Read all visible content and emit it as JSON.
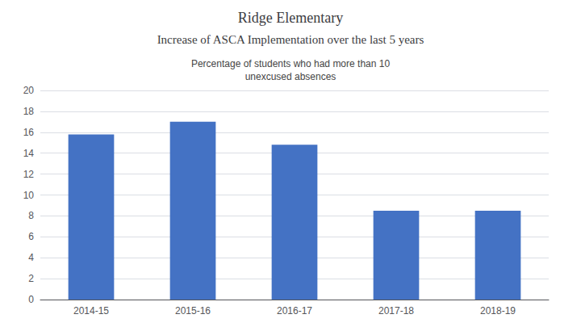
{
  "chart_data": {
    "type": "bar",
    "title": "Ridge Elementary",
    "subtitle": "Increase of ASCA Implementation over the last 5 years",
    "chart_title": "Percentage of students who had more than 10\nunexcused absences",
    "categories": [
      "2014-15",
      "2015-16",
      "2016-17",
      "2017-18",
      "2018-19"
    ],
    "values": [
      15.8,
      17.0,
      14.8,
      8.5,
      8.5
    ],
    "color": "#4472C4",
    "ylim": [
      0,
      20
    ],
    "yticks": [
      0,
      2,
      4,
      6,
      8,
      10,
      12,
      14,
      16,
      18,
      20
    ],
    "grid": true
  }
}
